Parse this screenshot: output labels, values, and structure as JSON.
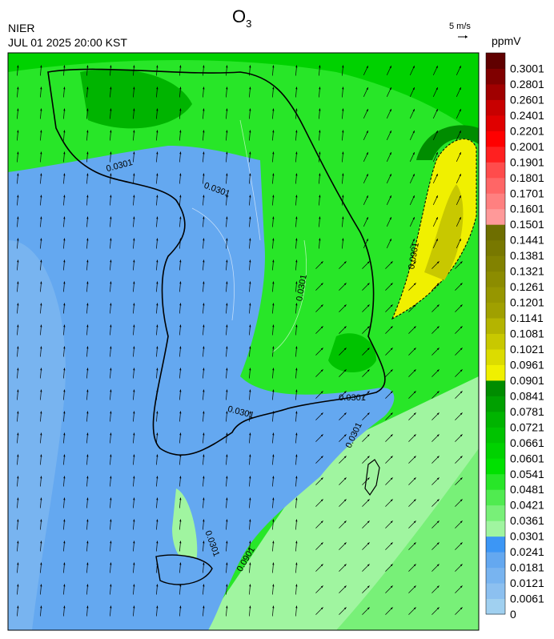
{
  "header": {
    "agency": "NIER",
    "timestamp": "JUL 01 2025 20:00 KST",
    "title": {
      "text": "O",
      "subscript": "3"
    },
    "wind_scale": "5 m/s"
  },
  "legend": {
    "unit": "ppmV",
    "labels": [
      "0",
      "0.0061",
      "0.0121",
      "0.0181",
      "0.0241",
      "0.0301",
      "0.0361",
      "0.0421",
      "0.0481",
      "0.0541",
      "0.0601",
      "0.0661",
      "0.0721",
      "0.0781",
      "0.0841",
      "0.0901",
      "0.0961",
      "0.1021",
      "0.1081",
      "0.1141",
      "0.1201",
      "0.1261",
      "0.1321",
      "0.1381",
      "0.1441",
      "0.1501",
      "0.1601",
      "0.1701",
      "0.1801",
      "0.1901",
      "0.2001",
      "0.2201",
      "0.2401",
      "0.2601",
      "0.2801",
      "0.3001"
    ],
    "colors": [
      "#a0d0f0",
      "#8cc0f0",
      "#78b4f0",
      "#64a8f0",
      "#3c96f5",
      "#a0f5a0",
      "#78f078",
      "#50eb50",
      "#28e628",
      "#00e100",
      "#00d200",
      "#00c300",
      "#00b400",
      "#00a000",
      "#008c00",
      "#f0f000",
      "#dcdc00",
      "#c8c800",
      "#b4b400",
      "#a0a000",
      "#969600",
      "#8c8c00",
      "#828200",
      "#787800",
      "#6e6e00",
      "#ff9999",
      "#ff8080",
      "#ff6666",
      "#ff4c4c",
      "#ff2020",
      "#ff0000",
      "#e00000",
      "#c80000",
      "#a00000",
      "#800000",
      "#600000"
    ]
  },
  "map": {
    "contour_labels": [
      "0.0301",
      "0.0301",
      "0.0301",
      "0.0301",
      "0.0301",
      "0.0301",
      "0.0301",
      "0.0901",
      "0.0901"
    ]
  }
}
